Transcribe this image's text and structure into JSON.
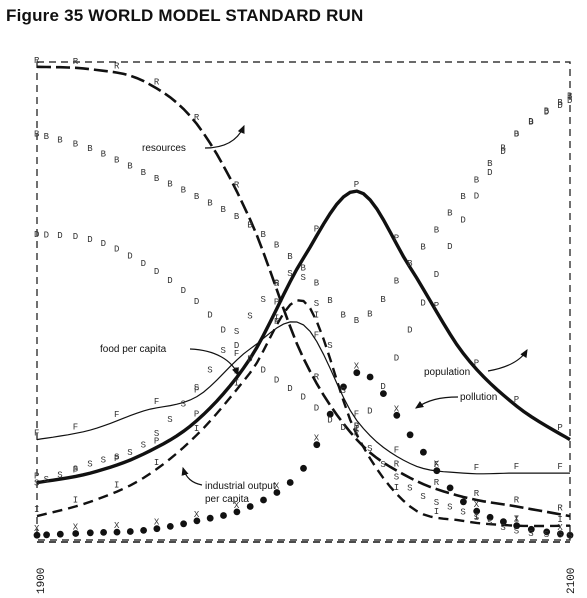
{
  "chart_data": {
    "type": "line",
    "title": "Figure 35 WORLD MODEL STANDARD RUN",
    "xlabel": "",
    "ylabel": "",
    "x_ticks": [
      "1900",
      "2100"
    ],
    "xlim": [
      1900,
      2100
    ],
    "ylim": [
      0,
      1
    ],
    "grid": false,
    "legend": "none",
    "x": [
      1900,
      1920,
      1940,
      1960,
      1980,
      2000,
      2020,
      2040,
      2060,
      2080,
      2100
    ],
    "series": [
      {
        "name": "resources",
        "marker": "R",
        "values": [
          0.99,
          0.985,
          0.96,
          0.87,
          0.67,
          0.38,
          0.21,
          0.13,
          0.09,
          0.07,
          0.05
        ]
      },
      {
        "name": "population",
        "marker": "P",
        "values": [
          0.12,
          0.14,
          0.18,
          0.25,
          0.38,
          0.59,
          0.73,
          0.57,
          0.39,
          0.28,
          0.21
        ]
      },
      {
        "name": "food per capita",
        "marker": "F",
        "values": [
          0.21,
          0.23,
          0.27,
          0.3,
          0.4,
          0.45,
          0.25,
          0.16,
          0.14,
          0.14,
          0.14
        ]
      },
      {
        "name": "industrial output per capita",
        "marker": "I",
        "values": [
          0.05,
          0.08,
          0.13,
          0.22,
          0.35,
          0.5,
          0.22,
          0.07,
          0.04,
          0.03,
          0.03
        ]
      },
      {
        "name": "pollution",
        "marker": "X",
        "values": [
          0.01,
          0.015,
          0.02,
          0.04,
          0.07,
          0.15,
          0.35,
          0.22,
          0.08,
          0.03,
          0.01
        ]
      },
      {
        "name": "",
        "marker": "B",
        "values": [
          0.85,
          0.82,
          0.77,
          0.72,
          0.66,
          0.57,
          0.46,
          0.58,
          0.72,
          0.85,
          0.93
        ]
      },
      {
        "name": "",
        "marker": "D",
        "values": [
          0.64,
          0.63,
          0.58,
          0.5,
          0.38,
          0.3,
          0.24,
          0.44,
          0.67,
          0.85,
          0.92
        ]
      },
      {
        "name": "",
        "marker": "S",
        "values": [
          0.12,
          0.16,
          0.2,
          0.32,
          0.47,
          0.55,
          0.24,
          0.11,
          0.06,
          0.02,
          0.01
        ]
      }
    ],
    "annotations": [
      "resources",
      "population",
      "pollution",
      "food per capita",
      "industrial output",
      "per capita"
    ]
  }
}
